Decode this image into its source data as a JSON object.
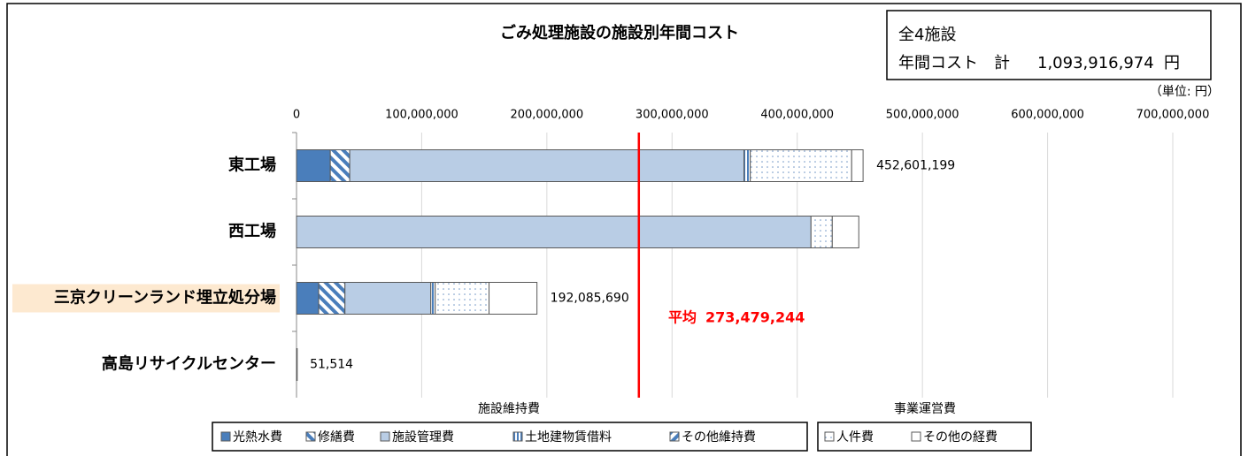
{
  "chart_data": {
    "type": "stacked-barh",
    "title": "ごみ処理施設の施設別年間コスト",
    "info": {
      "line1": "全4施設",
      "line2": "年間コスト　計",
      "total": "1,093,916,974",
      "unit": "円"
    },
    "unit_note": "（単位: 円）",
    "categories": [
      "東工場",
      "西工場",
      "三京クリーンランド埋立処分場",
      "高島リサイクルセンター"
    ],
    "highlight": 2,
    "groups": [
      {
        "name": "施設維持費",
        "series": [
          0,
          1,
          2,
          3,
          4
        ]
      },
      {
        "name": "事業運営費",
        "series": [
          5,
          6
        ]
      }
    ],
    "series": [
      {
        "name": "光熱水費",
        "color": "#4a7ebb",
        "pattern": "solid",
        "values": [
          27000000,
          0,
          17700000,
          0
        ]
      },
      {
        "name": "修繕費",
        "color": "#4a7ebb",
        "pattern": "hatch",
        "values": [
          15500000,
          0,
          21000000,
          0
        ]
      },
      {
        "name": "施設管理費",
        "color": "#b9cde5",
        "pattern": "solid",
        "values": [
          315000000,
          411000000,
          68600000,
          51514
        ]
      },
      {
        "name": "土地建物賃借料",
        "color": "#4a7ebb",
        "pattern": "vstripe",
        "values": [
          5000000,
          0,
          3500000,
          0
        ]
      },
      {
        "name": "その他維持費",
        "color": "#4a7ebb",
        "pattern": "hatch2",
        "values": [
          0,
          0,
          0,
          0
        ]
      },
      {
        "name": "人件費",
        "color": "#ffffff",
        "pattern": "dots",
        "values": [
          81000000,
          17000000,
          43000000,
          0
        ]
      },
      {
        "name": "その他の経費",
        "color": "#ffffff",
        "pattern": "solid",
        "values": [
          9101199,
          21178571,
          38285690,
          0
        ]
      }
    ],
    "total_labels": [
      "452,601,199",
      null,
      "192,085,690",
      "51,514"
    ],
    "average": {
      "label": "平均",
      "value": 273479244,
      "value_label": "273,479,244",
      "color": "#ff0000"
    },
    "xlim": [
      0,
      700000000
    ],
    "xticks": [
      0,
      {
        "value": 100000000,
        "label": "100,000,000"
      },
      {
        "value": 200000000,
        "label": "200,000,000"
      },
      {
        "value": 300000000,
        "label": "300,000,000"
      },
      {
        "value": 400000000,
        "label": "400,000,000"
      },
      {
        "value": 500000000,
        "label": "500,000,000"
      },
      {
        "value": 600000000,
        "label": "600,000,000"
      },
      {
        "value": 700000000,
        "label": "700,000,000"
      }
    ],
    "grid": true
  }
}
